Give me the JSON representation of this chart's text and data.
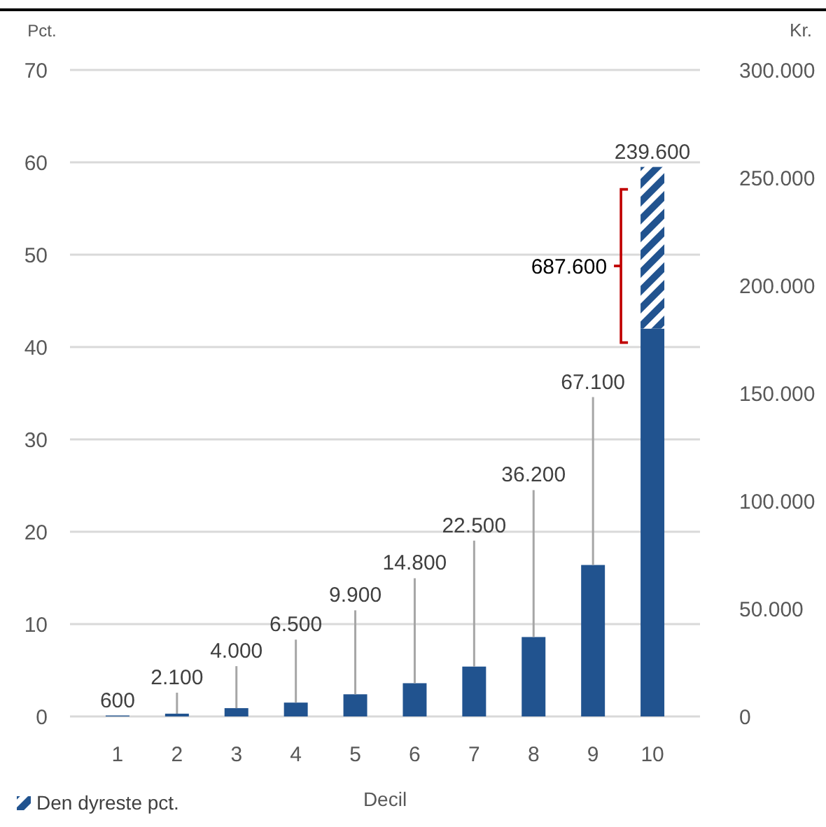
{
  "chart_data": {
    "type": "bar",
    "stacked": true,
    "xlabel": "Decil",
    "ylabel": "Pct.",
    "y2label": "Kr.",
    "categories": [
      "1",
      "2",
      "3",
      "4",
      "5",
      "6",
      "7",
      "8",
      "9",
      "10"
    ],
    "series": [
      {
        "color": "#21538f",
        "values": [
          0.1,
          0.3,
          0.9,
          1.5,
          2.4,
          3.6,
          5.4,
          8.6,
          16.4,
          42
        ]
      },
      {
        "name": "Den dyreste pct.",
        "color": "#21538f",
        "values": [
          null,
          null,
          null,
          null,
          null,
          null,
          null,
          null,
          null,
          17.5
        ]
      }
    ],
    "ylim": [
      0,
      70
    ],
    "yticks": [
      0,
      10,
      20,
      30,
      40,
      50,
      60,
      70
    ],
    "y2lim": [
      0,
      300000
    ],
    "y2ticks": [
      {
        "value": 0,
        "label": "0"
      },
      {
        "value": 50000,
        "label": "50.000"
      },
      {
        "value": 100000,
        "label": "100.000"
      },
      {
        "value": 150000,
        "label": "150.000"
      },
      {
        "value": 200000,
        "label": "200.000"
      },
      {
        "value": 250000,
        "label": "250.000"
      },
      {
        "value": 300000,
        "label": "300.000"
      }
    ],
    "annotations": [
      {
        "text": "600",
        "x": "1",
        "y": 0.1
      },
      {
        "text": "2.100",
        "x": "2",
        "y": 0.3
      },
      {
        "text": "4.000",
        "x": "3",
        "y": 0.9
      },
      {
        "text": "6.500",
        "x": "4",
        "y": 1.5
      },
      {
        "text": "9.900",
        "x": "5",
        "y": 2.4
      },
      {
        "text": "14.800",
        "x": "6",
        "y": 3.6
      },
      {
        "text": "22.500",
        "x": "7",
        "y": 5.4
      },
      {
        "text": "36.200",
        "x": "8",
        "y": 8.6
      },
      {
        "text": "67.100",
        "x": "9",
        "y": 16.4
      },
      {
        "text": "239.600",
        "x": "10",
        "y": 59.5
      },
      "687.600"
    ],
    "grid": "y",
    "legend": "bottom left"
  }
}
